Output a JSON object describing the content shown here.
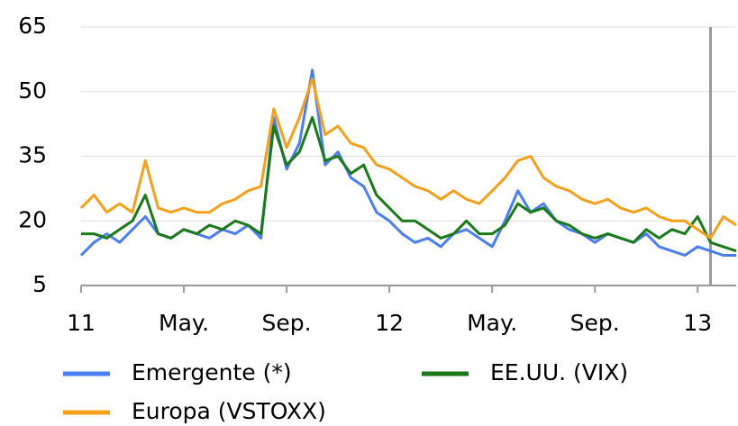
{
  "chart_data": {
    "type": "line",
    "x": [
      0,
      0.5,
      1,
      1.5,
      2,
      2.5,
      3,
      3.5,
      4,
      4.5,
      5,
      5.5,
      6,
      6.5,
      7,
      7.5,
      8,
      8.5,
      9,
      9.5,
      10,
      10.5,
      11,
      11.5,
      12,
      12.5,
      13,
      13.5,
      14,
      14.5,
      15,
      15.5,
      16,
      16.5,
      17,
      17.5,
      18,
      18.5,
      19,
      19.5,
      20,
      20.5,
      21,
      21.5,
      22,
      22.5,
      23,
      23.5,
      24,
      24.5,
      25,
      25.5
    ],
    "series": [
      {
        "name": "Emergente (*)",
        "color": "#4a7ef0",
        "values": [
          12,
          15,
          17,
          15,
          18,
          21,
          17,
          16,
          18,
          17,
          16,
          18,
          17,
          19,
          16,
          44,
          32,
          38,
          55,
          33,
          36,
          30,
          28,
          22,
          20,
          17,
          15,
          16,
          14,
          17,
          18,
          16,
          14,
          20,
          27,
          22,
          24,
          20,
          18,
          17,
          15,
          17,
          16,
          15,
          17,
          14,
          13,
          12,
          14,
          13,
          12,
          12
        ]
      },
      {
        "name": "EE.UU. (VIX)",
        "color": "#1a7a1a",
        "values": [
          17,
          17,
          16,
          18,
          20,
          26,
          17,
          16,
          18,
          17,
          19,
          18,
          20,
          19,
          17,
          42,
          33,
          36,
          44,
          34,
          35,
          31,
          33,
          26,
          23,
          20,
          20,
          18,
          16,
          17,
          20,
          17,
          17,
          19,
          24,
          22,
          23,
          20,
          19,
          17,
          16,
          17,
          16,
          15,
          18,
          16,
          18,
          17,
          21,
          15,
          14,
          13
        ]
      },
      {
        "name": "Europa (VSTOXX)",
        "color": "#f5a01a",
        "values": [
          23,
          26,
          22,
          24,
          22,
          34,
          23,
          22,
          23,
          22,
          22,
          24,
          25,
          27,
          28,
          46,
          37,
          44,
          53,
          40,
          42,
          38,
          37,
          33,
          32,
          30,
          28,
          27,
          25,
          27,
          25,
          24,
          27,
          30,
          34,
          35,
          30,
          28,
          27,
          25,
          24,
          25,
          23,
          22,
          23,
          21,
          20,
          20,
          18,
          16,
          21,
          19
        ]
      }
    ],
    "xlim": [
      0,
      25.5
    ],
    "xticks": [
      {
        "value": 0,
        "label": "11"
      },
      {
        "value": 4,
        "label": "May."
      },
      {
        "value": 8,
        "label": "Sep."
      },
      {
        "value": 12,
        "label": "12"
      },
      {
        "value": 16,
        "label": "May."
      },
      {
        "value": 20,
        "label": "Sep."
      },
      {
        "value": 24,
        "label": "13"
      }
    ],
    "ylim": [
      5,
      65
    ],
    "yticks": [
      5,
      20,
      35,
      50,
      65
    ],
    "grid": true,
    "reference_line_x": 24.5
  }
}
